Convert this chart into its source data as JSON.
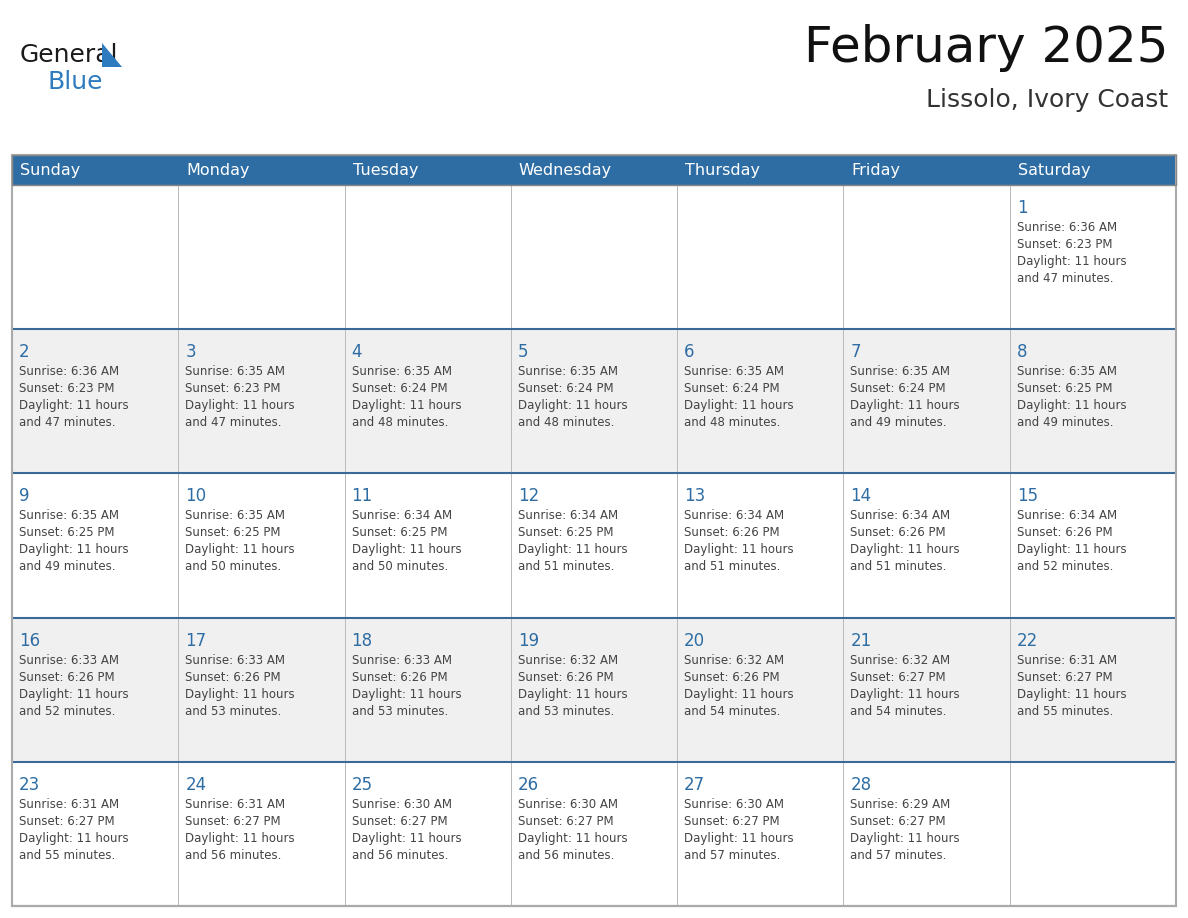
{
  "title": "February 2025",
  "subtitle": "Lissolo, Ivory Coast",
  "header_bg": "#2E6DA4",
  "header_text_color": "#FFFFFF",
  "cell_bg_white": "#FFFFFF",
  "cell_bg_gray": "#F0F0F0",
  "day_number_color": "#2E6DA4",
  "text_color": "#444444",
  "border_color": "#BBBBBB",
  "days_of_week": [
    "Sunday",
    "Monday",
    "Tuesday",
    "Wednesday",
    "Thursday",
    "Friday",
    "Saturday"
  ],
  "calendar_data": [
    [
      {
        "day": null,
        "sunrise": null,
        "sunset": null,
        "daylight_hrs": null,
        "daylight_min": null
      },
      {
        "day": null,
        "sunrise": null,
        "sunset": null,
        "daylight_hrs": null,
        "daylight_min": null
      },
      {
        "day": null,
        "sunrise": null,
        "sunset": null,
        "daylight_hrs": null,
        "daylight_min": null
      },
      {
        "day": null,
        "sunrise": null,
        "sunset": null,
        "daylight_hrs": null,
        "daylight_min": null
      },
      {
        "day": null,
        "sunrise": null,
        "sunset": null,
        "daylight_hrs": null,
        "daylight_min": null
      },
      {
        "day": null,
        "sunrise": null,
        "sunset": null,
        "daylight_hrs": null,
        "daylight_min": null
      },
      {
        "day": 1,
        "sunrise": "6:36 AM",
        "sunset": "6:23 PM",
        "daylight_hrs": "11 hours",
        "daylight_min": "and 47 minutes."
      }
    ],
    [
      {
        "day": 2,
        "sunrise": "6:36 AM",
        "sunset": "6:23 PM",
        "daylight_hrs": "11 hours",
        "daylight_min": "and 47 minutes."
      },
      {
        "day": 3,
        "sunrise": "6:35 AM",
        "sunset": "6:23 PM",
        "daylight_hrs": "11 hours",
        "daylight_min": "and 47 minutes."
      },
      {
        "day": 4,
        "sunrise": "6:35 AM",
        "sunset": "6:24 PM",
        "daylight_hrs": "11 hours",
        "daylight_min": "and 48 minutes."
      },
      {
        "day": 5,
        "sunrise": "6:35 AM",
        "sunset": "6:24 PM",
        "daylight_hrs": "11 hours",
        "daylight_min": "and 48 minutes."
      },
      {
        "day": 6,
        "sunrise": "6:35 AM",
        "sunset": "6:24 PM",
        "daylight_hrs": "11 hours",
        "daylight_min": "and 48 minutes."
      },
      {
        "day": 7,
        "sunrise": "6:35 AM",
        "sunset": "6:24 PM",
        "daylight_hrs": "11 hours",
        "daylight_min": "and 49 minutes."
      },
      {
        "day": 8,
        "sunrise": "6:35 AM",
        "sunset": "6:25 PM",
        "daylight_hrs": "11 hours",
        "daylight_min": "and 49 minutes."
      }
    ],
    [
      {
        "day": 9,
        "sunrise": "6:35 AM",
        "sunset": "6:25 PM",
        "daylight_hrs": "11 hours",
        "daylight_min": "and 49 minutes."
      },
      {
        "day": 10,
        "sunrise": "6:35 AM",
        "sunset": "6:25 PM",
        "daylight_hrs": "11 hours",
        "daylight_min": "and 50 minutes."
      },
      {
        "day": 11,
        "sunrise": "6:34 AM",
        "sunset": "6:25 PM",
        "daylight_hrs": "11 hours",
        "daylight_min": "and 50 minutes."
      },
      {
        "day": 12,
        "sunrise": "6:34 AM",
        "sunset": "6:25 PM",
        "daylight_hrs": "11 hours",
        "daylight_min": "and 51 minutes."
      },
      {
        "day": 13,
        "sunrise": "6:34 AM",
        "sunset": "6:26 PM",
        "daylight_hrs": "11 hours",
        "daylight_min": "and 51 minutes."
      },
      {
        "day": 14,
        "sunrise": "6:34 AM",
        "sunset": "6:26 PM",
        "daylight_hrs": "11 hours",
        "daylight_min": "and 51 minutes."
      },
      {
        "day": 15,
        "sunrise": "6:34 AM",
        "sunset": "6:26 PM",
        "daylight_hrs": "11 hours",
        "daylight_min": "and 52 minutes."
      }
    ],
    [
      {
        "day": 16,
        "sunrise": "6:33 AM",
        "sunset": "6:26 PM",
        "daylight_hrs": "11 hours",
        "daylight_min": "and 52 minutes."
      },
      {
        "day": 17,
        "sunrise": "6:33 AM",
        "sunset": "6:26 PM",
        "daylight_hrs": "11 hours",
        "daylight_min": "and 53 minutes."
      },
      {
        "day": 18,
        "sunrise": "6:33 AM",
        "sunset": "6:26 PM",
        "daylight_hrs": "11 hours",
        "daylight_min": "and 53 minutes."
      },
      {
        "day": 19,
        "sunrise": "6:32 AM",
        "sunset": "6:26 PM",
        "daylight_hrs": "11 hours",
        "daylight_min": "and 53 minutes."
      },
      {
        "day": 20,
        "sunrise": "6:32 AM",
        "sunset": "6:26 PM",
        "daylight_hrs": "11 hours",
        "daylight_min": "and 54 minutes."
      },
      {
        "day": 21,
        "sunrise": "6:32 AM",
        "sunset": "6:27 PM",
        "daylight_hrs": "11 hours",
        "daylight_min": "and 54 minutes."
      },
      {
        "day": 22,
        "sunrise": "6:31 AM",
        "sunset": "6:27 PM",
        "daylight_hrs": "11 hours",
        "daylight_min": "and 55 minutes."
      }
    ],
    [
      {
        "day": 23,
        "sunrise": "6:31 AM",
        "sunset": "6:27 PM",
        "daylight_hrs": "11 hours",
        "daylight_min": "and 55 minutes."
      },
      {
        "day": 24,
        "sunrise": "6:31 AM",
        "sunset": "6:27 PM",
        "daylight_hrs": "11 hours",
        "daylight_min": "and 56 minutes."
      },
      {
        "day": 25,
        "sunrise": "6:30 AM",
        "sunset": "6:27 PM",
        "daylight_hrs": "11 hours",
        "daylight_min": "and 56 minutes."
      },
      {
        "day": 26,
        "sunrise": "6:30 AM",
        "sunset": "6:27 PM",
        "daylight_hrs": "11 hours",
        "daylight_min": "and 56 minutes."
      },
      {
        "day": 27,
        "sunrise": "6:30 AM",
        "sunset": "6:27 PM",
        "daylight_hrs": "11 hours",
        "daylight_min": "and 57 minutes."
      },
      {
        "day": 28,
        "sunrise": "6:29 AM",
        "sunset": "6:27 PM",
        "daylight_hrs": "11 hours",
        "daylight_min": "and 57 minutes."
      },
      {
        "day": null,
        "sunrise": null,
        "sunset": null,
        "daylight_hrs": null,
        "daylight_min": null
      }
    ]
  ],
  "logo_general_color": "#1a1a1a",
  "logo_blue_color": "#2E7BBF",
  "logo_triangle_color": "#2E7BBF"
}
